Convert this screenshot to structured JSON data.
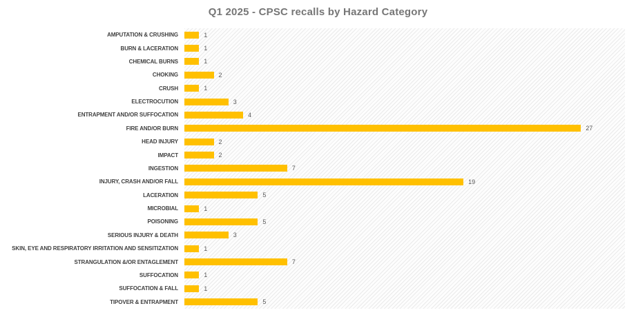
{
  "chart_data": {
    "type": "bar",
    "orientation": "horizontal",
    "title": "Q1 2025 - CPSC recalls by Hazard Category",
    "categories": [
      "AMPUTATION & CRUSHING",
      "BURN & LACERATION",
      "CHEMICAL BURNS",
      "CHOKING",
      "CRUSH",
      "ELECTROCUTION",
      "ENTRAPMENT AND/OR SUFFOCATION",
      "FIRE AND/OR BURN",
      "HEAD INJURY",
      "IMPACT",
      "INGESTION",
      "INJURY, CRASH AND/OR FALL",
      "LACERATION",
      "MICROBIAL",
      "POISONING",
      "SERIOUS INJURY & DEATH",
      "SKIN, EYE AND RESPIRATORY IRRITATION AND SENSITIZATION",
      "STRANGULATION &/OR ENTAGLEMENT",
      "SUFFOCATION",
      "SUFFOCATION & FALL",
      "TIPOVER & ENTRAPMENT"
    ],
    "values": [
      1,
      1,
      1,
      2,
      1,
      3,
      4,
      27,
      2,
      2,
      7,
      19,
      5,
      1,
      5,
      3,
      1,
      7,
      1,
      1,
      5
    ],
    "xlim": [
      0,
      30
    ],
    "grid": false,
    "legend": false,
    "data_labels": true,
    "colors": {
      "bar": "#FFC000",
      "title": "#767676",
      "category_label": "#3f3f3f",
      "value_label": "#595959",
      "plot_background": "#fdfdfd",
      "hatch_line": "#eaeaea"
    }
  }
}
